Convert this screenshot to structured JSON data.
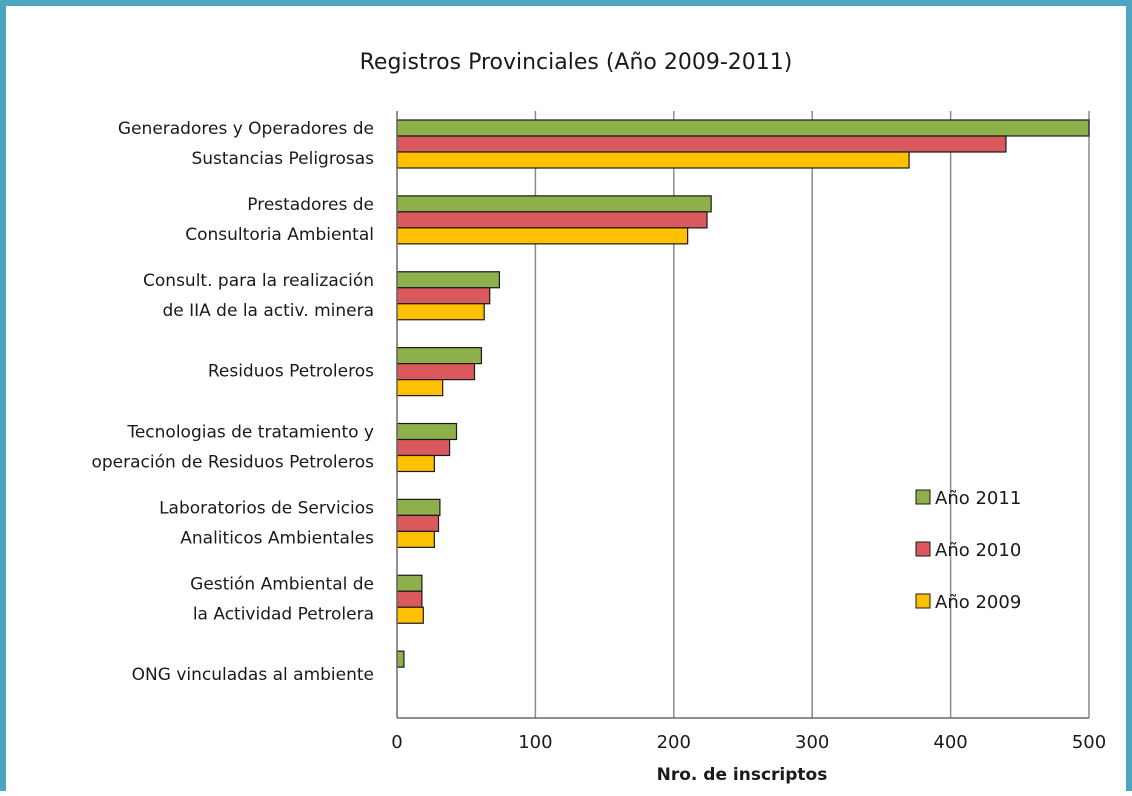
{
  "chart_data": {
    "type": "bar",
    "orientation": "horizontal",
    "title": "Registros Provinciales (Año 2009-2011)",
    "xlabel": "Nro. de inscriptos",
    "ylabel": "",
    "xlim": [
      0,
      500
    ],
    "xticks": [
      0,
      100,
      200,
      300,
      400,
      500
    ],
    "grid": true,
    "legend_position": "right",
    "categories": [
      [
        "Generadores y Operadores de",
        "Sustancias Peligrosas"
      ],
      [
        "Prestadores de",
        "Consultoria Ambiental"
      ],
      [
        "Consult. para la realización",
        "de IIA de la activ. minera"
      ],
      [
        "Residuos Petroleros"
      ],
      [
        "Tecnologias de tratamiento y",
        "operación de Residuos Petroleros"
      ],
      [
        "Laboratorios de Servicios",
        "Analiticos Ambientales"
      ],
      [
        "Gestión Ambiental de",
        "la Actividad Petrolera"
      ],
      [
        "ONG vinculadas al ambiente"
      ]
    ],
    "series": [
      {
        "name": "Año 2011",
        "color": "#8db04a",
        "values": [
          500,
          227,
          74,
          61,
          43,
          31,
          18,
          5
        ]
      },
      {
        "name": "Año 2010",
        "color": "#d9595c",
        "values": [
          440,
          224,
          67,
          56,
          38,
          30,
          18,
          0
        ]
      },
      {
        "name": "Año 2009",
        "color": "#ffc000",
        "values": [
          370,
          210,
          63,
          33,
          27,
          27,
          19,
          0
        ]
      }
    ]
  }
}
